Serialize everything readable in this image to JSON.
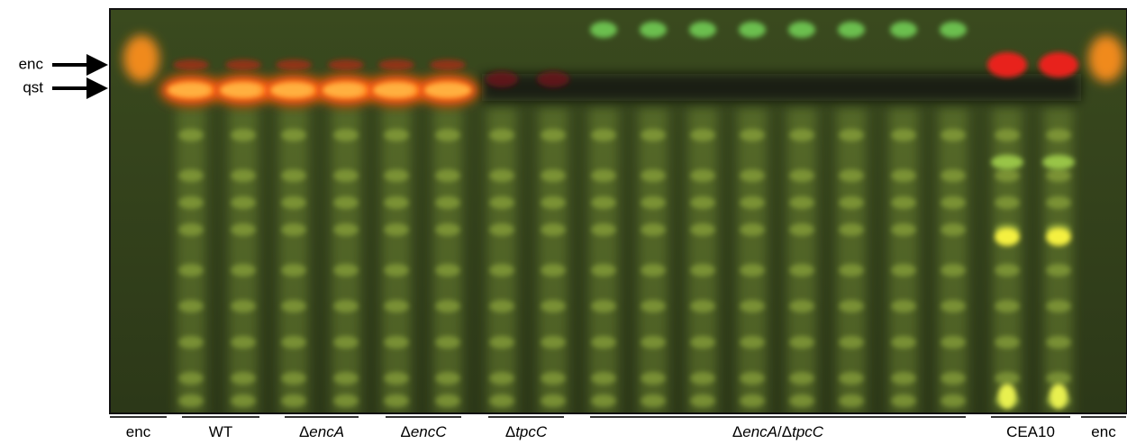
{
  "markers": [
    {
      "label": "enc"
    },
    {
      "label": "qst"
    }
  ],
  "groups": [
    {
      "parts": [
        {
          "text": "enc"
        }
      ]
    },
    {
      "parts": [
        {
          "text": "WT"
        }
      ]
    },
    {
      "parts": [
        {
          "text": "Δ"
        },
        {
          "text": "encA",
          "italic": true
        }
      ]
    },
    {
      "parts": [
        {
          "text": "Δ"
        },
        {
          "text": "encC",
          "italic": true
        }
      ]
    },
    {
      "parts": [
        {
          "text": "Δ"
        },
        {
          "text": "tpcC",
          "italic": true
        }
      ]
    },
    {
      "parts": [
        {
          "text": "Δ"
        },
        {
          "text": "encA",
          "italic": true
        },
        {
          "text": "/Δ"
        },
        {
          "text": "tpcC",
          "italic": true
        }
      ]
    },
    {
      "parts": [
        {
          "text": "CEA10"
        }
      ]
    },
    {
      "parts": [
        {
          "text": "enc"
        }
      ]
    }
  ]
}
